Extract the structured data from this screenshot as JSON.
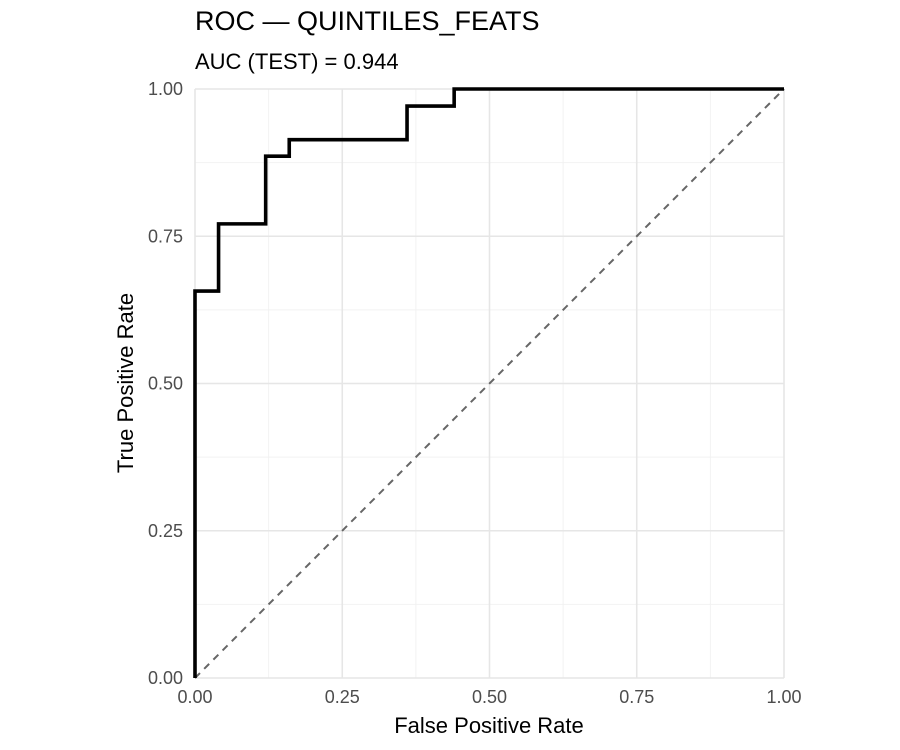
{
  "chart_data": {
    "type": "line",
    "title": "ROC — QUINTILES_FEATS",
    "subtitle": "AUC (TEST) = 0.944",
    "xlabel": "False Positive Rate",
    "ylabel": "True Positive Rate",
    "xlim": [
      0,
      1
    ],
    "ylim": [
      0,
      1
    ],
    "x_ticks": [
      "0.00",
      "0.25",
      "0.50",
      "0.75",
      "1.00"
    ],
    "y_ticks": [
      "0.00",
      "0.25",
      "0.50",
      "0.75",
      "1.00"
    ],
    "grid": true,
    "series": [
      {
        "style": "solid",
        "color": "#000000",
        "x": [
          0,
          0,
          0,
          0.04,
          0.04,
          0.12,
          0.12,
          0.16,
          0.16,
          0.36,
          0.36,
          0.44,
          0.44,
          1.0
        ],
        "y": [
          0,
          0.029,
          0.657,
          0.657,
          0.771,
          0.771,
          0.886,
          0.886,
          0.914,
          0.914,
          0.971,
          0.971,
          1.0,
          1.0
        ]
      },
      {
        "style": "dashed",
        "color": "#666666",
        "x": [
          0,
          1
        ],
        "y": [
          0,
          1
        ]
      }
    ]
  }
}
